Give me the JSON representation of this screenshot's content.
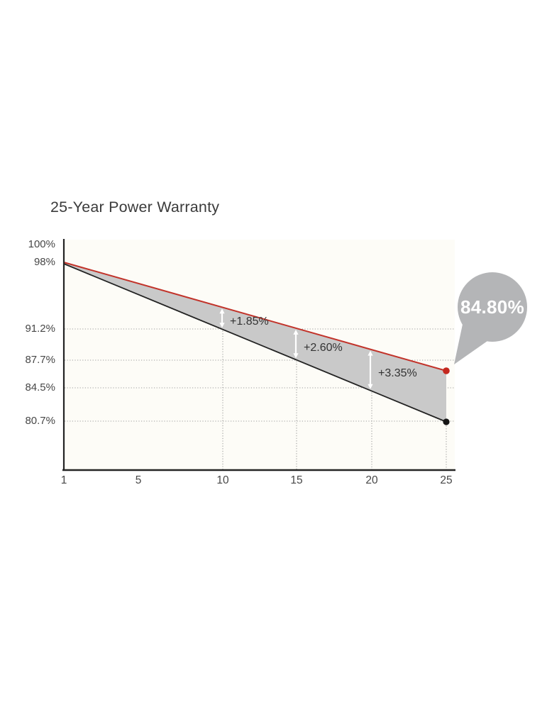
{
  "chart": {
    "title": "25-Year Power Warranty",
    "callout_value": "84.80%",
    "y_tick_labels": [
      "100%",
      "98%",
      "91.2%",
      "87.7%",
      "84.5%",
      "80.7%"
    ],
    "x_tick_labels": [
      "1",
      "5",
      "10",
      "15",
      "20",
      "25"
    ],
    "gap_annotations": [
      "+1.85%",
      "+2.60%",
      "+3.35%"
    ],
    "colors": {
      "title_text": "#3b3b3b",
      "label_text": "#474747",
      "annotation_text": "#333333",
      "premium_line": "#c2332a",
      "premium_dot": "#c4281f",
      "standard_line": "#232323",
      "standard_dot": "#161616",
      "band_fill": "#c9c9c9",
      "bubble_fill": "#b4b5b7",
      "callout_text": "#ffffff",
      "grid": "#9c9c9c",
      "axis": "#242424",
      "plot_bg": "#fdfcf7",
      "arrow": "#ffffff"
    }
  },
  "chart_data": {
    "type": "line",
    "title": "25-Year Power Warranty",
    "xlabel": "",
    "ylabel": "",
    "x_ticks": [
      1,
      5,
      10,
      15,
      20,
      25
    ],
    "y_ticks": [
      100,
      98,
      91.2,
      87.7,
      84.5,
      80.7
    ],
    "xlim": [
      1,
      25
    ],
    "ylim": [
      78,
      100
    ],
    "grid": "dotted; horizontal at 91.2/87.7/84.5/80.7, vertical at years 10/15/20/25 below lower line",
    "legend": "none",
    "area_fill_between_series": true,
    "series": [
      {
        "name": "enhanced-warranty-top-line",
        "color": "#c2332a",
        "x": [
          1,
          10,
          15,
          20,
          25
        ],
        "values": [
          98,
          93.05,
          90.3,
          87.85,
          84.8
        ]
      },
      {
        "name": "standard-warranty-bottom-line",
        "color": "#232323",
        "x": [
          1,
          10,
          15,
          20,
          25
        ],
        "values": [
          98,
          91.2,
          87.7,
          84.5,
          80.7
        ]
      }
    ],
    "gap_annotations": [
      {
        "year": 10,
        "label": "+1.85%",
        "value": 1.85
      },
      {
        "year": 15,
        "label": "+2.60%",
        "value": 2.6
      },
      {
        "year": 20,
        "label": "+3.35%",
        "value": 3.35
      }
    ],
    "end_callout": {
      "year": 25,
      "label": "84.80%",
      "value": 84.8
    }
  }
}
